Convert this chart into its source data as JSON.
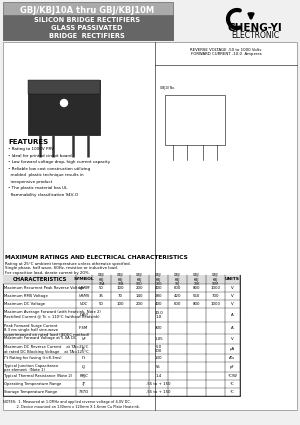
{
  "title_part": "GBJ/KBJ10A thru GBJ/KBJ10M",
  "title_line2": "SILICON BRIDGE RECTIFIERS",
  "title_line3": "GLASS PASSIVATED",
  "title_line4": "BRIDGE  RECTIFIERS",
  "brand_name": "CHENG-YI",
  "brand_sub": "ELECTRONIC",
  "rev_voltage": "REVERSE VOLTAGE -50 to 1000 Volts",
  "fwd_current": "FORWARD CURRENT -10.0  Amperes",
  "features_title": "FEATURES",
  "features": [
    "Rating to 1000V PRV",
    "Ideal for printed circuit board",
    "Low forward voltage drop, high current capacity",
    "Reliable low cost construction utilizing",
    "  molded  plastic technique results in",
    "  inexpensive product",
    "The plastic material has UL",
    "  flammability classification 94V-O"
  ],
  "table_title": "MAXIMUM RATINGS AND ELECTRICAL CHARACTERISTICS",
  "table_subtitle1": "Rating at 25°C ambient temperature unless otherwise specified.",
  "table_subtitle2": "Single phase, half wave, 60Hz, resistive or inductive load.",
  "table_subtitle3": "For capacitive load, derate current by 20%.",
  "col_headers": [
    "GBJ/\nKBJ\n10A",
    "GBJ/\nKBJ\n10B",
    "GBJ/\nKBJ\n10D",
    "GBJ/\nKBJ\n10G",
    "GBJ/\nKBJ\n10J",
    "GBJ/\nKBJ\n10K",
    "GBJ/\nKBJ\n10M"
  ],
  "rows": [
    {
      "char": "Maximum Recurrent Peak Reverse Voltage",
      "sym": "VʀʀM",
      "vals": [
        "50",
        "100",
        "200",
        "400",
        "600",
        "800",
        "1000",
        "V"
      ]
    },
    {
      "char": "Maximum RMS Voltage",
      "sym": "VʀMS",
      "vals": [
        "35",
        "70",
        "140",
        "280",
        "420",
        "560",
        "700",
        "V"
      ]
    },
    {
      "char": "Maximum DC Voltage",
      "sym": "VʀC",
      "vals": [
        "50",
        "100",
        "200",
        "400",
        "600",
        "800",
        "1000",
        "V"
      ]
    },
    {
      "char": "Maximum Average Forward (with heatsink, Note 2)\nRectified Current @ Tc = 110°C (without heatsink)",
      "sym": "I(AV)",
      "vals": [
        "",
        "",
        "",
        "10.0\n1.0",
        "",
        "",
        "",
        "A"
      ]
    },
    {
      "char": "Peak Forward Surge Current\n8.3 ms single half sine-wave\nsuperimposed on rated load (JEDEC method)",
      "sym": "IFSM",
      "vals": [
        "",
        "",
        "",
        "300",
        "",
        "",
        "",
        "A"
      ]
    },
    {
      "char": "Maximum Forward Voltage at 5.0A DC",
      "sym": "VF",
      "vals": [
        "",
        "",
        "",
        "1.05",
        "",
        "",
        "",
        "V"
      ]
    },
    {
      "char": "Maximum DC Reverse Current    at TA=25°C\nat rated DC Blocking Voltage    at TA=125°C",
      "sym": "IR",
      "vals": [
        "",
        "",
        "",
        "5.0\n500",
        "",
        "",
        "",
        "μA"
      ]
    },
    {
      "char": "I²t Rating for fusing (t<8.3ms)",
      "sym": "I²t",
      "vals": [
        "",
        "",
        "",
        "130",
        "",
        "",
        "",
        "A²s"
      ]
    },
    {
      "char": "Typical Junction Capacitance\nper element  (Note 1)",
      "sym": "Cj",
      "vals": [
        "",
        "",
        "",
        "55",
        "",
        "",
        "",
        "pF"
      ]
    },
    {
      "char": "Typical Thermal Resistance (Note 2)",
      "sym": "RθJC",
      "vals": [
        "",
        "",
        "",
        "1.4",
        "",
        "",
        "",
        "°C/W"
      ]
    },
    {
      "char": "Operating Temperature Range",
      "sym": "TJ",
      "vals": [
        "",
        "",
        "",
        "-55 to + 150",
        "",
        "",
        "",
        "°C"
      ]
    },
    {
      "char": "Storage Temperature Range",
      "sym": "TSTG",
      "vals": [
        "",
        "",
        "",
        "-55 to + 150",
        "",
        "",
        "",
        "°C"
      ]
    }
  ],
  "notes": [
    "NOTES:  1. Measured at 1.0MHz and applied reverse voltage of 4.0V DC.",
    "            2. Device mounted on 130mm x 120mm X 1.6mm Cu Plate Heatsink."
  ],
  "bg_color": "#f0f0f0",
  "title_box_color": "#999999",
  "title_subbox_color": "#666666"
}
